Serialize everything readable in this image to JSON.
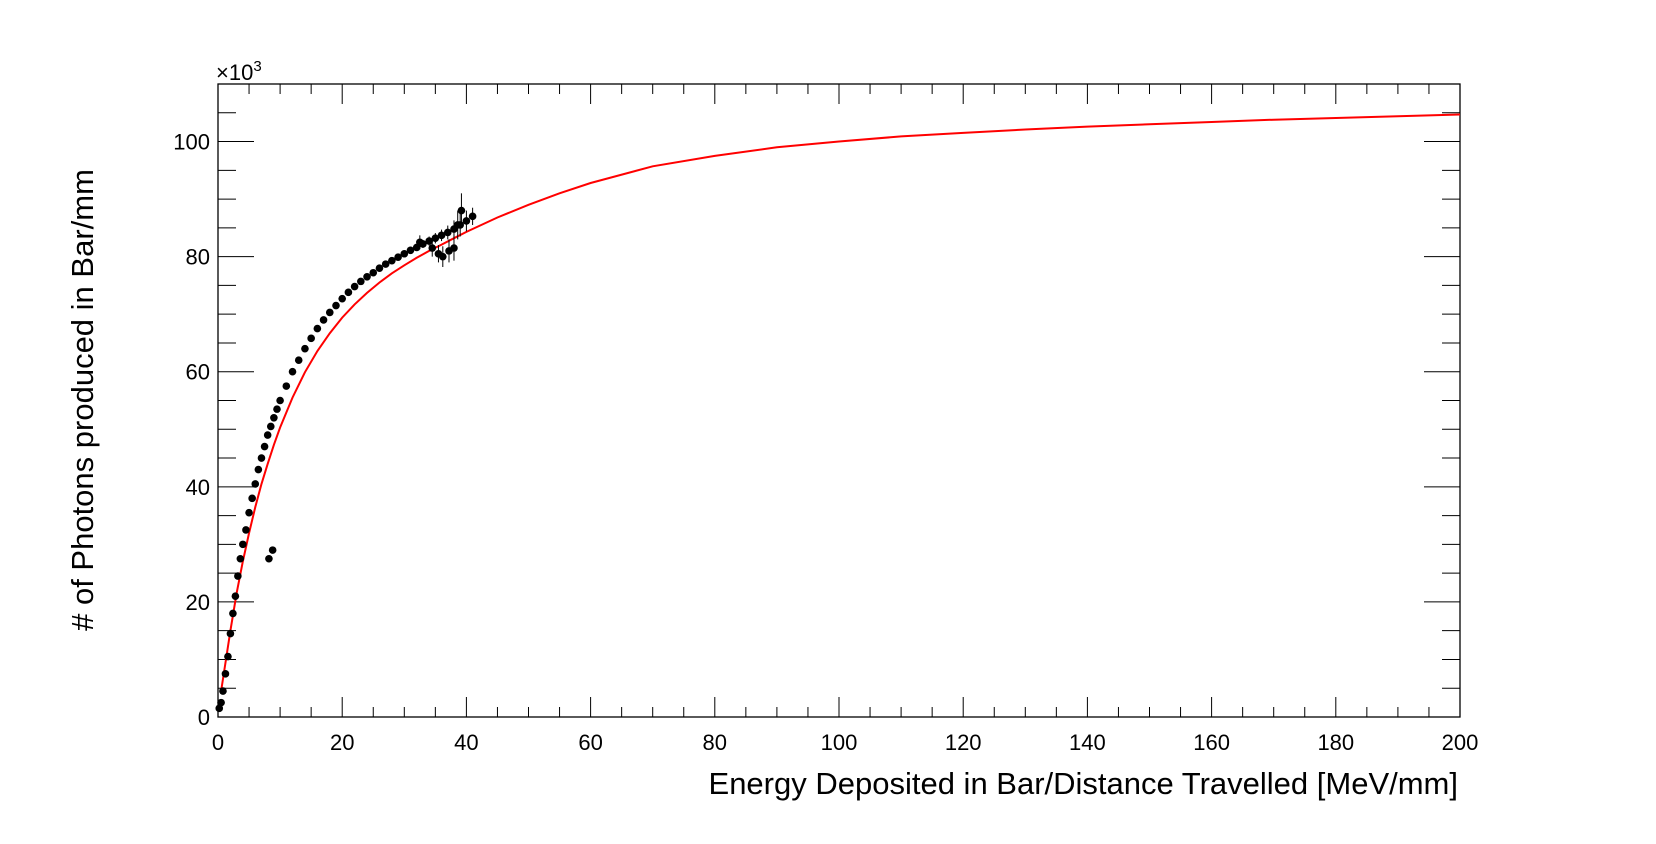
{
  "chart_data": {
    "type": "scatter",
    "title": "",
    "xlabel": "Energy Deposited in Bar/Distance Travelled [MeV/mm]",
    "ylabel": "# of Photons produced in Bar/mm",
    "y_multiplier": "×10",
    "y_multiplier_exp": "3",
    "xlim": [
      0,
      200
    ],
    "ylim": [
      0,
      110
    ],
    "x_ticks": [
      "0",
      "20",
      "40",
      "60",
      "80",
      "100",
      "120",
      "140",
      "160",
      "180",
      "200"
    ],
    "y_ticks": [
      "0",
      "20",
      "40",
      "60",
      "80",
      "100"
    ],
    "grid": false,
    "series": [
      {
        "kind": "points",
        "color": "#000000",
        "x": [
          0.2,
          0.5,
          0.8,
          1.2,
          1.6,
          2.0,
          2.4,
          2.8,
          3.2,
          3.6,
          4.0,
          4.5,
          5.0,
          5.5,
          6.0,
          6.5,
          7.0,
          7.5,
          8.0,
          8.5,
          9.0,
          9.5,
          10,
          11,
          12,
          13,
          14,
          15,
          16,
          17,
          18,
          19,
          20,
          21,
          22,
          23,
          24,
          25,
          26,
          27,
          28,
          29,
          30,
          31,
          32,
          33,
          34,
          35,
          36,
          37,
          38,
          39,
          40,
          41,
          8.2,
          8.8,
          32.5,
          34.5,
          35.5,
          36.2,
          37.2,
          38.0,
          38.6,
          39.2
        ],
        "y": [
          1.5,
          2.5,
          4.5,
          7.5,
          10.5,
          14.5,
          18,
          21,
          24.5,
          27.5,
          30,
          32.5,
          35.5,
          38,
          40.5,
          43,
          45,
          47,
          49,
          50.5,
          52,
          53.5,
          55,
          57.5,
          60,
          62,
          64,
          65.8,
          67.5,
          69,
          70.3,
          71.5,
          72.7,
          73.8,
          74.8,
          75.7,
          76.5,
          77.2,
          78,
          78.7,
          79.3,
          79.9,
          80.5,
          81.1,
          81.6,
          82.2,
          82.7,
          83.2,
          83.7,
          84.2,
          84.8,
          85.5,
          86.2,
          87,
          27.5,
          29,
          82.5,
          81.5,
          80.5,
          80,
          81,
          81.5,
          85.5,
          88
        ],
        "errors": [
          0.3,
          0.3,
          0.3,
          0.3,
          0.3,
          0.3,
          0.3,
          0.3,
          0.3,
          0.3,
          0.3,
          0.3,
          0.3,
          0.3,
          0.3,
          0.3,
          0.3,
          0.3,
          0.3,
          0.3,
          0.3,
          0.3,
          0.3,
          0.3,
          0.3,
          0.3,
          0.3,
          0.3,
          0.3,
          0.3,
          0.3,
          0.3,
          0.3,
          0.3,
          0.3,
          0.3,
          0.3,
          0.3,
          0.4,
          0.4,
          0.4,
          0.5,
          0.5,
          0.6,
          0.6,
          0.7,
          0.8,
          0.9,
          1.0,
          1.2,
          1.5,
          2.0,
          1.8,
          1.5,
          0.6,
          0.6,
          1.2,
          1.5,
          1.5,
          1.8,
          2.0,
          2.2,
          2.5,
          3.0
        ]
      },
      {
        "kind": "fit",
        "color": "#ff0000",
        "x": [
          0.5,
          1,
          2,
          3,
          4,
          5,
          6,
          7,
          8,
          9,
          10,
          12,
          14,
          16,
          18,
          20,
          22,
          24,
          26,
          28,
          30,
          32,
          34,
          36,
          38,
          40,
          45,
          50,
          55,
          60,
          70,
          80,
          90,
          100,
          110,
          120,
          130,
          140,
          150,
          160,
          170,
          180,
          190,
          200
        ],
        "y": [
          4.5,
          8.0,
          15.0,
          21.5,
          27.0,
          32.0,
          36.5,
          40.5,
          44.0,
          47.3,
          50.3,
          55.5,
          59.9,
          63.6,
          66.7,
          69.4,
          71.7,
          73.7,
          75.5,
          77.1,
          78.5,
          79.8,
          81.0,
          82.1,
          83.2,
          84.3,
          86.8,
          89.0,
          91.0,
          92.8,
          95.7,
          97.5,
          99.0,
          100.0,
          100.9,
          101.5,
          102.1,
          102.6,
          103.0,
          103.4,
          103.8,
          104.1,
          104.4,
          104.7
        ]
      }
    ]
  }
}
